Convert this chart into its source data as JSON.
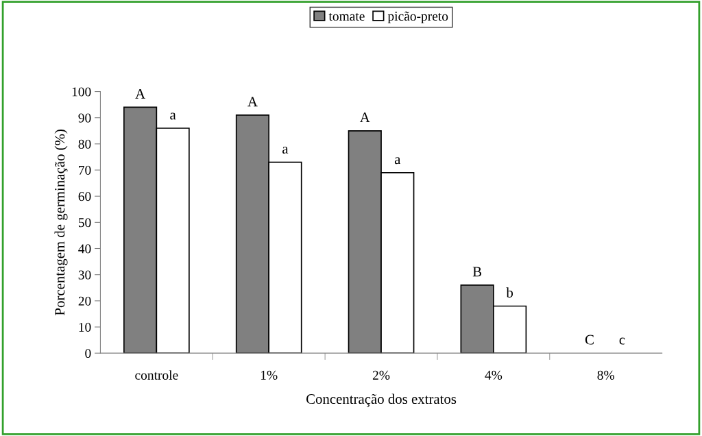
{
  "chart_data": {
    "type": "bar",
    "xlabel": "Concentração dos extratos",
    "ylabel": "Porcentagem de germinação (%)",
    "categories": [
      "controle",
      "1%",
      "2%",
      "4%",
      "8%"
    ],
    "series": [
      {
        "name": "tomate",
        "color": "#808080",
        "values": [
          94,
          91,
          85,
          26,
          0
        ]
      },
      {
        "name": "picão-preto",
        "color": "#ffffff",
        "values": [
          86,
          73,
          69,
          18,
          0
        ]
      }
    ],
    "ylim": [
      0,
      100
    ],
    "yticks": [
      0,
      10,
      20,
      30,
      40,
      50,
      60,
      70,
      80,
      90,
      100
    ],
    "grid": false,
    "legend": "top",
    "annotations": [
      {
        "text": "A",
        "x": "controle",
        "y": 94
      },
      {
        "text": "a",
        "x": "controle",
        "y": 86
      },
      {
        "text": "A",
        "x": "1%",
        "y": 91
      },
      {
        "text": "a",
        "x": "1%",
        "y": 73
      },
      {
        "text": "A",
        "x": "2%",
        "y": 85
      },
      {
        "text": "a",
        "x": "2%",
        "y": 69
      },
      {
        "text": "B",
        "x": "4%",
        "y": 26
      },
      {
        "text": "b",
        "x": "4%",
        "y": 18
      },
      {
        "text": "C",
        "x": "8%",
        "y": 0
      },
      {
        "text": "c",
        "x": "8%",
        "y": 0
      }
    ]
  }
}
